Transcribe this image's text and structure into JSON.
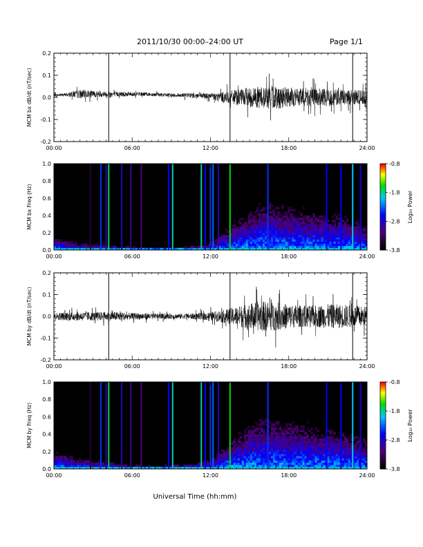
{
  "header": {
    "title": "2011/10/30  00:00–24:00 UT",
    "page": "Page 1/1"
  },
  "xlabel": "Universal Time (hh:mm)",
  "chart_data": [
    {
      "type": "line",
      "ylabel": "MCM bx dB/dt (nT/sec)",
      "xlim": [
        0,
        24
      ],
      "ylim": [
        -0.2,
        0.2
      ],
      "x_tick_labels": [
        "00:00",
        "06:00",
        "12:00",
        "18:00",
        "24:00"
      ],
      "y_tick_labels": [
        "-0.2",
        "-0.1",
        "0.0",
        "0.1",
        "0.2"
      ],
      "spike_times_hours": [
        4.2,
        13.5,
        22.9
      ],
      "series": [
        {
          "x": [
            0,
            1,
            2,
            3,
            4,
            5,
            6,
            7,
            8,
            9,
            10,
            11,
            12,
            13,
            14,
            15,
            16,
            17,
            18,
            19,
            20,
            21,
            22,
            23,
            24
          ],
          "y_center": [
            0.01,
            0.012,
            0.015,
            0.015,
            0.015,
            0.015,
            0.015,
            0.015,
            0.012,
            0.01,
            0.01,
            0.008,
            0.005,
            0.0,
            0.0,
            0.0,
            0.0,
            0.0,
            0.0,
            0.0,
            0.0,
            0.0,
            0.0,
            0.0,
            0.0
          ],
          "y_amplitude": [
            0.006,
            0.008,
            0.02,
            0.015,
            0.012,
            0.012,
            0.01,
            0.008,
            0.008,
            0.008,
            0.01,
            0.012,
            0.015,
            0.025,
            0.035,
            0.045,
            0.05,
            0.055,
            0.045,
            0.04,
            0.04,
            0.04,
            0.035,
            0.035,
            0.03
          ]
        }
      ]
    },
    {
      "type": "heatmap",
      "ylabel": "MCM bx Freq (Hz)",
      "xlim": [
        0,
        24
      ],
      "ylim": [
        0.0,
        1.0
      ],
      "x_tick_labels": [
        "00:00",
        "06:00",
        "12:00",
        "18:00",
        "24:00"
      ],
      "y_tick_labels": [
        "0.0",
        "0.2",
        "0.4",
        "0.6",
        "0.8",
        "1.0"
      ],
      "colorbar": {
        "label": "Log₁₀ Power",
        "range": [
          -3.8,
          -0.8
        ],
        "tick_labels": [
          "-0.8",
          "-1.8",
          "-2.8",
          "-3.8"
        ]
      },
      "activity_hours": [
        0,
        2,
        4,
        6,
        8,
        10,
        12,
        14,
        16,
        18,
        20,
        22,
        24
      ],
      "activity_freq_reach": [
        0.15,
        0.08,
        0.06,
        0.04,
        0.03,
        0.04,
        0.08,
        0.35,
        0.55,
        0.5,
        0.45,
        0.4,
        0.3
      ],
      "vertical_lines": [
        {
          "t": 2.8,
          "level": 0.1
        },
        {
          "t": 3.6,
          "level": 0.45
        },
        {
          "t": 4.0,
          "level": 0.3
        },
        {
          "t": 4.2,
          "level": 0.7
        },
        {
          "t": 5.2,
          "level": 0.3
        },
        {
          "t": 5.9,
          "level": 0.25
        },
        {
          "t": 6.7,
          "level": 0.2
        },
        {
          "t": 8.8,
          "level": 0.4
        },
        {
          "t": 9.1,
          "level": 0.65
        },
        {
          "t": 11.3,
          "level": 0.65
        },
        {
          "t": 11.6,
          "level": 0.4
        },
        {
          "t": 12.0,
          "level": 0.45
        },
        {
          "t": 12.2,
          "level": 0.5
        },
        {
          "t": 12.6,
          "level": 0.3
        },
        {
          "t": 13.5,
          "level": 0.75
        },
        {
          "t": 16.4,
          "level": 0.45
        },
        {
          "t": 20.9,
          "level": 0.4
        },
        {
          "t": 22.0,
          "level": 0.4
        },
        {
          "t": 22.9,
          "level": 0.6
        },
        {
          "t": 23.5,
          "level": 0.35
        }
      ]
    },
    {
      "type": "line",
      "ylabel": "MCM by dB/dt (nT/sec)",
      "xlim": [
        0,
        24
      ],
      "ylim": [
        -0.2,
        0.2
      ],
      "x_tick_labels": [
        "00:00",
        "06:00",
        "12:00",
        "18:00",
        "24:00"
      ],
      "y_tick_labels": [
        "-0.2",
        "-0.1",
        "0.0",
        "0.1",
        "0.2"
      ],
      "spike_times_hours": [
        4.2,
        13.5,
        22.9
      ],
      "series": [
        {
          "x": [
            0,
            1,
            2,
            3,
            4,
            5,
            6,
            7,
            8,
            9,
            10,
            11,
            12,
            13,
            14,
            15,
            16,
            17,
            18,
            19,
            20,
            21,
            22,
            23,
            24
          ],
          "y_center": [
            0.0,
            0.0,
            0.0,
            0.0,
            0.0,
            0.0,
            0.0,
            0.0,
            0.0,
            0.0,
            0.0,
            0.0,
            0.0,
            0.0,
            0.0,
            0.0,
            0.0,
            0.0,
            0.0,
            0.0,
            0.0,
            0.0,
            0.0,
            0.0,
            0.0
          ],
          "y_amplitude": [
            0.015,
            0.02,
            0.02,
            0.02,
            0.02,
            0.02,
            0.015,
            0.015,
            0.012,
            0.012,
            0.012,
            0.015,
            0.02,
            0.03,
            0.045,
            0.06,
            0.07,
            0.065,
            0.055,
            0.05,
            0.05,
            0.055,
            0.055,
            0.05,
            0.045
          ]
        }
      ]
    },
    {
      "type": "heatmap",
      "ylabel": "MCM by Freq (Hz)",
      "xlim": [
        0,
        24
      ],
      "ylim": [
        0.0,
        1.0
      ],
      "x_tick_labels": [
        "00:00",
        "06:00",
        "12:00",
        "18:00",
        "24:00"
      ],
      "y_tick_labels": [
        "0.0",
        "0.2",
        "0.4",
        "0.6",
        "0.8",
        "1.0"
      ],
      "colorbar": {
        "label": "Log₁₀ Power",
        "range": [
          -3.8,
          -0.8
        ],
        "tick_labels": [
          "-0.8",
          "-1.8",
          "-2.8",
          "-3.8"
        ]
      },
      "activity_hours": [
        0,
        2,
        4,
        6,
        8,
        10,
        12,
        14,
        16,
        18,
        20,
        22,
        24
      ],
      "activity_freq_reach": [
        0.2,
        0.12,
        0.08,
        0.05,
        0.04,
        0.05,
        0.1,
        0.4,
        0.6,
        0.55,
        0.5,
        0.45,
        0.35
      ],
      "vertical_lines": [
        {
          "t": 2.8,
          "level": 0.1
        },
        {
          "t": 3.6,
          "level": 0.45
        },
        {
          "t": 4.0,
          "level": 0.3
        },
        {
          "t": 4.2,
          "level": 0.7
        },
        {
          "t": 5.2,
          "level": 0.3
        },
        {
          "t": 5.9,
          "level": 0.25
        },
        {
          "t": 6.7,
          "level": 0.2
        },
        {
          "t": 8.8,
          "level": 0.4
        },
        {
          "t": 9.1,
          "level": 0.65
        },
        {
          "t": 11.3,
          "level": 0.65
        },
        {
          "t": 11.6,
          "level": 0.4
        },
        {
          "t": 12.0,
          "level": 0.45
        },
        {
          "t": 12.2,
          "level": 0.5
        },
        {
          "t": 12.6,
          "level": 0.3
        },
        {
          "t": 13.5,
          "level": 0.75
        },
        {
          "t": 16.4,
          "level": 0.45
        },
        {
          "t": 20.9,
          "level": 0.4
        },
        {
          "t": 22.0,
          "level": 0.4
        },
        {
          "t": 22.9,
          "level": 0.6
        },
        {
          "t": 23.5,
          "level": 0.35
        }
      ]
    }
  ]
}
